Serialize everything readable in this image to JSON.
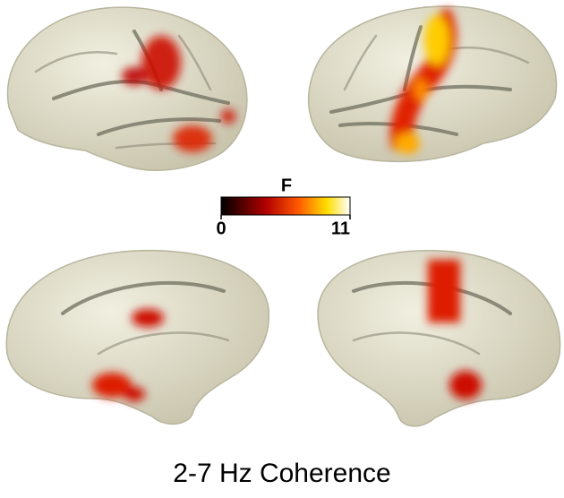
{
  "colorbar": {
    "label": "F",
    "lim": [
      0,
      11
    ],
    "ticks": [
      0,
      11
    ]
  },
  "caption": "2-7 Hz Coherence"
}
